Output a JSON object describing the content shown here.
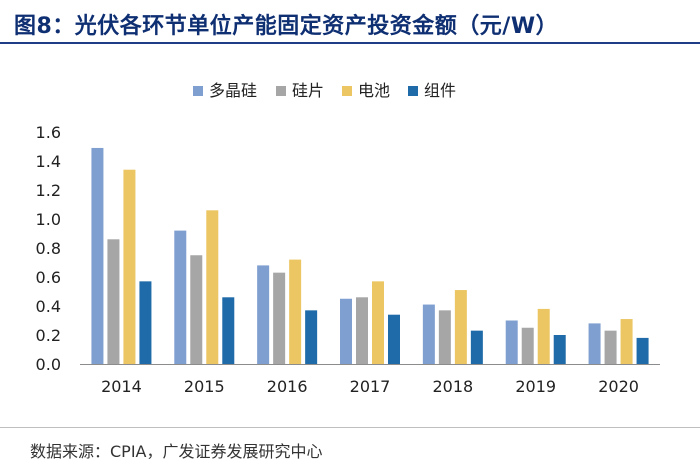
{
  "header": {
    "title": "图8：光伏各环节单位产能固定资产投资金额（元/W）"
  },
  "footer": {
    "source": "数据来源：CPIA，广发证券发展研究中心"
  },
  "chart_data": {
    "type": "bar",
    "title": "图8：光伏各环节单位产能固定资产投资金额（元/W）",
    "xlabel": "",
    "ylabel": "",
    "categories": [
      "2014",
      "2015",
      "2016",
      "2017",
      "2018",
      "2019",
      "2020"
    ],
    "ylim": [
      0,
      1.6
    ],
    "yticks": [
      "0.0",
      "0.2",
      "0.4",
      "0.6",
      "0.8",
      "1.0",
      "1.2",
      "1.4",
      "1.6"
    ],
    "grid": false,
    "legend_position": "top",
    "series": [
      {
        "name": "多晶硅",
        "color": "#7f9fd0",
        "values": [
          1.49,
          0.92,
          0.68,
          0.45,
          0.41,
          0.3,
          0.28
        ]
      },
      {
        "name": "硅片",
        "color": "#a6a6a6",
        "values": [
          0.86,
          0.75,
          0.63,
          0.46,
          0.37,
          0.25,
          0.23
        ]
      },
      {
        "name": "电池",
        "color": "#ecc663",
        "values": [
          1.34,
          1.06,
          0.72,
          0.57,
          0.51,
          0.38,
          0.31
        ]
      },
      {
        "name": "组件",
        "color": "#1f6aa8",
        "values": [
          0.57,
          0.46,
          0.37,
          0.34,
          0.23,
          0.2,
          0.18
        ]
      }
    ]
  }
}
